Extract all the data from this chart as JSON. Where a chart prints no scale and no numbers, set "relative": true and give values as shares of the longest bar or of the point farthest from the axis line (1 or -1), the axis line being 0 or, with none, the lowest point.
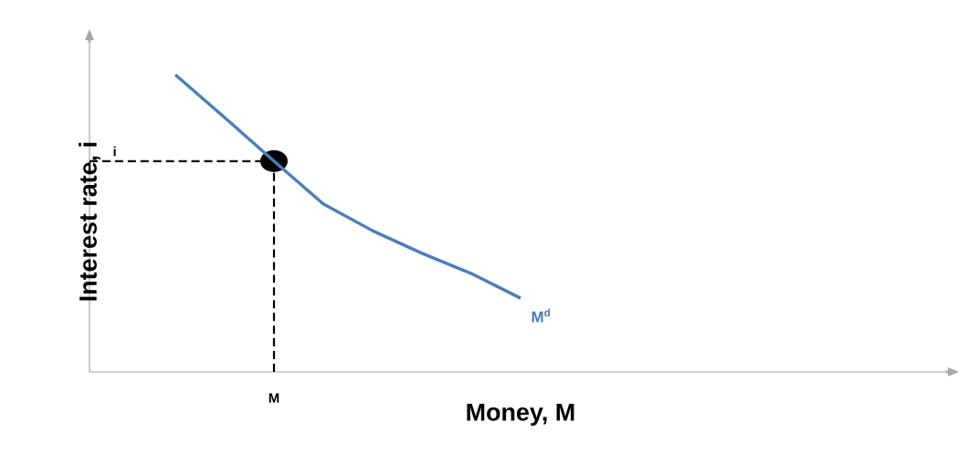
{
  "chart_data": {
    "type": "line",
    "relative": true,
    "xlabel": "Money, M",
    "ylabel": "Interest rate, i",
    "categories": [
      null,
      null,
      null,
      null,
      null,
      null,
      null,
      null
    ],
    "series": [
      {
        "name": "M$^{d}$",
        "color": "#4a7ebb",
        "values": [
          1,
          0.856,
          0.709,
          0.565,
          0.475,
          0.399,
          0.331,
          0.248
        ]
      }
    ],
    "ref_lines": [
      {
        "axis": "y",
        "value": 0.709,
        "label": "i",
        "color": "#000000",
        "line_style": "dashed"
      },
      {
        "axis": "x",
        "value": "M",
        "color": "#000000",
        "line_style": "dashed"
      }
    ]
  }
}
